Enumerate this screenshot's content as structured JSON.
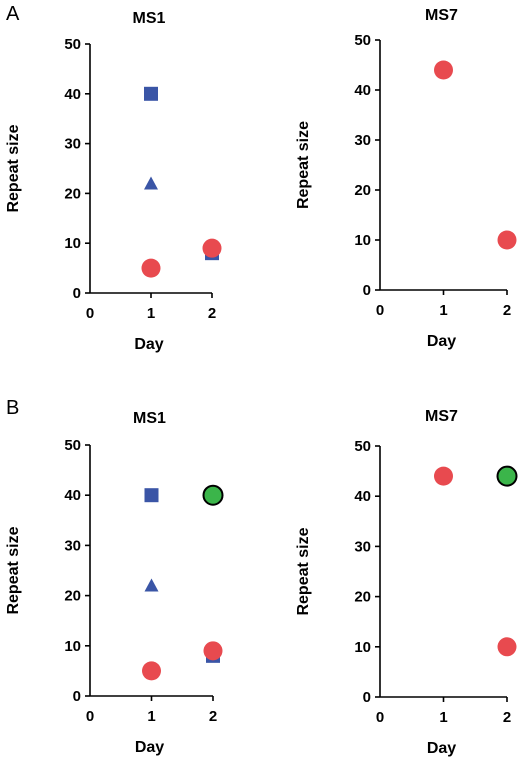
{
  "panel_labels": [
    "A",
    "B"
  ],
  "colors": {
    "square": "#3a55a6",
    "triangle": "#3a55a6",
    "red_circle": "#e84a4f",
    "green_circle": "#3bb54a",
    "green_outline": "#000000"
  },
  "chart_data": [
    {
      "panel": "A",
      "type": "scatter",
      "title": "MS1",
      "xlabel": "Day",
      "ylabel": "Repeat size",
      "xlim": [
        0,
        2
      ],
      "ylim": [
        0,
        50
      ],
      "xticks": [
        "0",
        "1",
        "2"
      ],
      "yticks": [
        "0",
        "10",
        "20",
        "30",
        "40",
        "50"
      ],
      "points": [
        {
          "x": 1,
          "y": 40,
          "marker": "square"
        },
        {
          "x": 1,
          "y": 22,
          "marker": "triangle"
        },
        {
          "x": 2,
          "y": 8,
          "marker": "square"
        },
        {
          "x": 1,
          "y": 5,
          "marker": "red_circle"
        },
        {
          "x": 2,
          "y": 9,
          "marker": "red_circle"
        }
      ]
    },
    {
      "panel": "A",
      "type": "scatter",
      "title": "MS7",
      "xlabel": "Day",
      "ylabel": "Repeat size",
      "xlim": [
        0,
        2
      ],
      "ylim": [
        0,
        50
      ],
      "xticks": [
        "0",
        "1",
        "2"
      ],
      "yticks": [
        "0",
        "10",
        "20",
        "30",
        "40",
        "50"
      ],
      "points": [
        {
          "x": 1,
          "y": 44,
          "marker": "red_circle"
        },
        {
          "x": 2,
          "y": 10,
          "marker": "red_circle"
        }
      ]
    },
    {
      "panel": "B",
      "type": "scatter",
      "title": "MS1",
      "xlabel": "Day",
      "ylabel": "Repeat size",
      "xlim": [
        0,
        2
      ],
      "ylim": [
        0,
        50
      ],
      "xticks": [
        "0",
        "1",
        "2"
      ],
      "yticks": [
        "0",
        "10",
        "20",
        "30",
        "40",
        "50"
      ],
      "points": [
        {
          "x": 1,
          "y": 40,
          "marker": "square"
        },
        {
          "x": 1,
          "y": 22,
          "marker": "triangle"
        },
        {
          "x": 2,
          "y": 8,
          "marker": "square"
        },
        {
          "x": 1,
          "y": 5,
          "marker": "red_circle"
        },
        {
          "x": 2,
          "y": 9,
          "marker": "red_circle"
        },
        {
          "x": 2,
          "y": 40,
          "marker": "green_circle"
        }
      ]
    },
    {
      "panel": "B",
      "type": "scatter",
      "title": "MS7",
      "xlabel": "Day",
      "ylabel": "Repeat size",
      "xlim": [
        0,
        2
      ],
      "ylim": [
        0,
        50
      ],
      "xticks": [
        "0",
        "1",
        "2"
      ],
      "yticks": [
        "0",
        "10",
        "20",
        "30",
        "40",
        "50"
      ],
      "points": [
        {
          "x": 1,
          "y": 44,
          "marker": "red_circle"
        },
        {
          "x": 2,
          "y": 44,
          "marker": "green_circle"
        },
        {
          "x": 2,
          "y": 10,
          "marker": "red_circle"
        }
      ]
    }
  ]
}
